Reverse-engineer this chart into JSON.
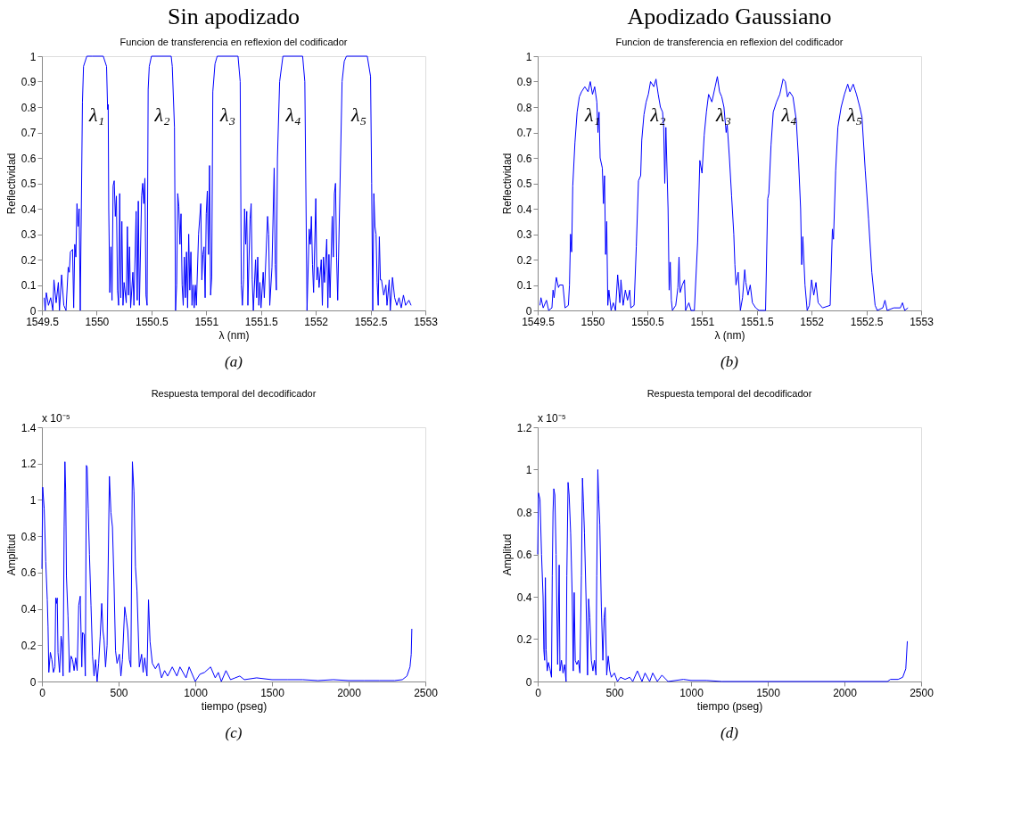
{
  "chart_data": [
    {
      "type": "line",
      "title": "Sin apodizado",
      "subtitle": "Funcion de transferencia en reflexion del codificador",
      "xlabel": "λ (nm)",
      "ylabel": "Reflectividad",
      "xlim": [
        1549.5,
        1553
      ],
      "xticks": [
        1549.5,
        1550,
        1550.5,
        1551,
        1551.5,
        1552,
        1552.5,
        1553
      ],
      "ylim": [
        0,
        1
      ],
      "yticks": [
        0,
        0.1,
        0.2,
        0.3,
        0.4,
        0.5,
        0.6,
        0.7,
        0.8,
        0.9,
        1
      ],
      "grid": false,
      "x": [
        1549.52,
        1549.53,
        1549.54,
        1549.56,
        1549.58,
        1549.6,
        1549.61,
        1549.63,
        1549.65,
        1549.66,
        1549.68,
        1549.7,
        1549.72,
        1549.74,
        1549.75,
        1549.76,
        1549.78,
        1549.79,
        1549.8,
        1549.81,
        1549.82,
        1549.83,
        1549.84,
        1549.85,
        1549.87,
        1549.88,
        1549.91,
        1549.96,
        1550.06,
        1550.09,
        1550.1,
        1550.105,
        1550.11,
        1550.12,
        1550.13,
        1550.14,
        1550.15,
        1550.16,
        1550.17,
        1550.18,
        1550.19,
        1550.2,
        1550.21,
        1550.22,
        1550.23,
        1550.24,
        1550.25,
        1550.27,
        1550.28,
        1550.29,
        1550.3,
        1550.31,
        1550.33,
        1550.34,
        1550.36,
        1550.37,
        1550.38,
        1550.39,
        1550.41,
        1550.42,
        1550.43,
        1550.44,
        1550.45,
        1550.46,
        1550.47,
        1550.48,
        1550.5,
        1550.68,
        1550.69,
        1550.71,
        1550.72,
        1550.73,
        1550.74,
        1550.75,
        1550.76,
        1550.77,
        1550.78,
        1550.79,
        1550.8,
        1550.81,
        1550.82,
        1550.83,
        1550.84,
        1550.85,
        1550.86,
        1550.87,
        1550.88,
        1550.89,
        1550.9,
        1550.91,
        1550.93,
        1550.95,
        1550.96,
        1550.97,
        1550.98,
        1550.99,
        1551.0,
        1551.01,
        1551.02,
        1551.03,
        1551.04,
        1551.05,
        1551.06,
        1551.08,
        1551.1,
        1551.29,
        1551.31,
        1551.32,
        1551.33,
        1551.34,
        1551.35,
        1551.36,
        1551.37,
        1551.38,
        1551.4,
        1551.41,
        1551.42,
        1551.43,
        1551.45,
        1551.46,
        1551.47,
        1551.48,
        1551.49,
        1551.5,
        1551.52,
        1551.53,
        1551.56,
        1551.57,
        1551.58,
        1551.6,
        1551.62,
        1551.63,
        1551.64,
        1551.65,
        1551.67,
        1551.7,
        1551.88,
        1551.9,
        1551.92,
        1551.94,
        1551.95,
        1551.96,
        1551.97,
        1551.98,
        1552.0,
        1552.01,
        1552.02,
        1552.03,
        1552.05,
        1552.06,
        1552.07,
        1552.08,
        1552.1,
        1552.11,
        1552.12,
        1552.13,
        1552.15,
        1552.16,
        1552.17,
        1552.18,
        1552.19,
        1552.2,
        1552.24,
        1552.26,
        1552.28,
        1552.47,
        1552.5,
        1552.51,
        1552.52,
        1552.53,
        1552.54,
        1552.55,
        1552.56,
        1552.57,
        1552.58,
        1552.59,
        1552.6,
        1552.62,
        1552.64,
        1552.65,
        1552.67,
        1552.68,
        1552.7,
        1552.72,
        1552.74,
        1552.76,
        1552.78,
        1552.8,
        1552.82,
        1552.85,
        1552.87
      ],
      "series": [
        {
          "color": "#0000ff",
          "values": [
            0.05,
            0.0,
            0.07,
            0.02,
            0.05,
            0.0,
            0.12,
            0.03,
            0.11,
            0.0,
            0.14,
            0.02,
            0.0,
            0.17,
            0.15,
            0.23,
            0.24,
            0.01,
            0.26,
            0.21,
            0.42,
            0.33,
            0.4,
            0.0,
            0.82,
            0.96,
            1.0,
            1.0,
            1.0,
            0.96,
            0.79,
            0.81,
            0.4,
            0.07,
            0.25,
            0.04,
            0.49,
            0.51,
            0.37,
            0.45,
            0.08,
            0.02,
            0.46,
            0.05,
            0.35,
            0.02,
            0.11,
            0.03,
            0.33,
            0.06,
            0.25,
            0.01,
            0.15,
            0.02,
            0.39,
            0.04,
            0.43,
            0.02,
            0.45,
            0.5,
            0.42,
            0.52,
            0.06,
            0.02,
            0.87,
            0.96,
            1.0,
            1.0,
            0.96,
            0.72,
            0.0,
            0.1,
            0.46,
            0.41,
            0.26,
            0.38,
            0.1,
            0.02,
            0.21,
            0.05,
            0.23,
            0.01,
            0.3,
            0.08,
            0.23,
            0.02,
            0.1,
            0.01,
            0.1,
            0.02,
            0.3,
            0.42,
            0.12,
            0.22,
            0.25,
            0.05,
            0.38,
            0.47,
            0.22,
            0.57,
            0.06,
            0.13,
            0.86,
            0.97,
            1.0,
            1.0,
            0.9,
            0.1,
            0.02,
            0.12,
            0.4,
            0.26,
            0.39,
            0.02,
            0.36,
            0.42,
            0.12,
            0.0,
            0.2,
            0.05,
            0.21,
            0.02,
            0.11,
            0.01,
            0.15,
            0.05,
            0.37,
            0.3,
            0.02,
            0.17,
            0.56,
            0.18,
            0.08,
            0.6,
            0.9,
            1.0,
            1.0,
            0.9,
            0.0,
            0.32,
            0.26,
            0.37,
            0.18,
            0.07,
            0.44,
            0.12,
            0.17,
            0.09,
            0.2,
            0.02,
            0.21,
            0.11,
            0.28,
            0.01,
            0.22,
            0.05,
            0.37,
            0.21,
            0.46,
            0.5,
            0.21,
            0.04,
            0.9,
            0.98,
            1.0,
            1.0,
            0.92,
            0.5,
            0.0,
            0.46,
            0.33,
            0.3,
            0.11,
            0.02,
            0.29,
            0.12,
            0.12,
            0.06,
            0.1,
            0.02,
            0.12,
            0.0,
            0.13,
            0.05,
            0.02,
            0.05,
            0.01,
            0.06,
            0.02,
            0.04,
            0.02
          ]
        }
      ],
      "annotations": [
        "λ₁",
        "λ₂",
        "λ₃",
        "λ₄",
        "λ₅",
        "(a)"
      ]
    },
    {
      "type": "line",
      "title": "Apodizado Gaussiano",
      "subtitle": "Funcion de transferencia en reflexion del codificador",
      "xlabel": "λ (nm)",
      "ylabel": "Reflectividad",
      "xlim": [
        1549.5,
        1553
      ],
      "xticks": [
        1549.5,
        1550,
        1550.5,
        1551,
        1551.5,
        1552,
        1552.5,
        1553
      ],
      "ylim": [
        0,
        1
      ],
      "yticks": [
        0,
        0.1,
        0.2,
        0.3,
        0.4,
        0.5,
        0.6,
        0.7,
        0.8,
        0.9,
        1
      ],
      "grid": false,
      "x": [
        1549.52,
        1549.53,
        1549.55,
        1549.58,
        1549.6,
        1549.63,
        1549.64,
        1549.65,
        1549.67,
        1549.69,
        1549.7,
        1549.73,
        1549.75,
        1549.78,
        1549.79,
        1549.8,
        1549.81,
        1549.82,
        1549.84,
        1549.86,
        1549.88,
        1549.9,
        1549.93,
        1549.96,
        1549.98,
        1550.0,
        1550.02,
        1550.04,
        1550.05,
        1550.06,
        1550.07,
        1550.09,
        1550.1,
        1550.11,
        1550.12,
        1550.13,
        1550.14,
        1550.15,
        1550.17,
        1550.19,
        1550.21,
        1550.23,
        1550.25,
        1550.26,
        1550.28,
        1550.3,
        1550.32,
        1550.34,
        1550.35,
        1550.38,
        1550.4,
        1550.42,
        1550.44,
        1550.45,
        1550.47,
        1550.49,
        1550.51,
        1550.53,
        1550.56,
        1550.58,
        1550.6,
        1550.62,
        1550.64,
        1550.65,
        1550.66,
        1550.67,
        1550.69,
        1550.7,
        1550.71,
        1550.72,
        1550.73,
        1550.76,
        1550.78,
        1550.79,
        1550.8,
        1550.82,
        1550.84,
        1550.85,
        1550.88,
        1550.9,
        1550.93,
        1550.96,
        1550.98,
        1551.0,
        1551.02,
        1551.04,
        1551.06,
        1551.09,
        1551.12,
        1551.14,
        1551.16,
        1551.18,
        1551.2,
        1551.22,
        1551.23,
        1551.25,
        1551.27,
        1551.29,
        1551.3,
        1551.31,
        1551.33,
        1551.35,
        1551.37,
        1551.39,
        1551.4,
        1551.42,
        1551.44,
        1551.46,
        1551.49,
        1551.52,
        1551.58,
        1551.6,
        1551.61,
        1551.63,
        1551.65,
        1551.68,
        1551.71,
        1551.74,
        1551.76,
        1551.78,
        1551.8,
        1551.83,
        1551.86,
        1551.88,
        1551.9,
        1551.91,
        1551.92,
        1551.94,
        1551.96,
        1551.98,
        1552.0,
        1552.02,
        1552.04,
        1552.06,
        1552.1,
        1552.17,
        1552.19,
        1552.2,
        1552.22,
        1552.24,
        1552.27,
        1552.3,
        1552.33,
        1552.35,
        1552.38,
        1552.41,
        1552.44,
        1552.46,
        1552.49,
        1552.52,
        1552.55,
        1552.58,
        1552.6,
        1552.65,
        1552.67,
        1552.69,
        1552.75,
        1552.81,
        1552.83,
        1552.85,
        1552.88
      ],
      "series": [
        {
          "color": "#0000ff",
          "values": [
            0.02,
            0.05,
            0.01,
            0.04,
            0.0,
            0.01,
            0.08,
            0.05,
            0.13,
            0.09,
            0.1,
            0.1,
            0.01,
            0.02,
            0.1,
            0.3,
            0.23,
            0.49,
            0.66,
            0.78,
            0.84,
            0.86,
            0.88,
            0.86,
            0.9,
            0.85,
            0.88,
            0.82,
            0.7,
            0.78,
            0.6,
            0.56,
            0.42,
            0.53,
            0.22,
            0.35,
            0.02,
            0.08,
            0.0,
            0.03,
            0.0,
            0.14,
            0.03,
            0.12,
            0.02,
            0.08,
            0.04,
            0.08,
            0.01,
            0.02,
            0.25,
            0.51,
            0.53,
            0.67,
            0.77,
            0.82,
            0.85,
            0.9,
            0.88,
            0.91,
            0.85,
            0.8,
            0.78,
            0.72,
            0.5,
            0.72,
            0.4,
            0.08,
            0.19,
            0.04,
            0.0,
            0.02,
            0.09,
            0.21,
            0.07,
            0.1,
            0.12,
            0.0,
            0.03,
            0.0,
            0.0,
            0.27,
            0.59,
            0.54,
            0.69,
            0.78,
            0.85,
            0.82,
            0.88,
            0.92,
            0.86,
            0.84,
            0.8,
            0.7,
            0.73,
            0.6,
            0.45,
            0.3,
            0.18,
            0.1,
            0.15,
            0.0,
            0.05,
            0.16,
            0.11,
            0.06,
            0.1,
            0.03,
            0.01,
            0.0,
            0.0,
            0.44,
            0.46,
            0.65,
            0.78,
            0.82,
            0.85,
            0.91,
            0.9,
            0.84,
            0.86,
            0.84,
            0.75,
            0.6,
            0.4,
            0.18,
            0.29,
            0.1,
            0.0,
            0.02,
            0.12,
            0.06,
            0.11,
            0.03,
            0.01,
            0.02,
            0.32,
            0.28,
            0.55,
            0.72,
            0.8,
            0.85,
            0.89,
            0.86,
            0.89,
            0.85,
            0.8,
            0.76,
            0.55,
            0.36,
            0.15,
            0.02,
            0.0,
            0.01,
            0.04,
            0.0,
            0.01,
            0.01,
            0.03,
            0.0,
            0.01
          ]
        }
      ],
      "annotations": [
        "λ₁",
        "λ₂",
        "λ₃",
        "λ₄",
        "λ₅",
        "(b)"
      ]
    },
    {
      "type": "line",
      "title": "Respuesta temporal del decodificador",
      "xlabel": "tiempo (pseg)",
      "ylabel": "Amplitud",
      "xlim": [
        0,
        2500
      ],
      "xticks": [
        0,
        500,
        1000,
        1500,
        2000,
        2500
      ],
      "ylim": [
        0,
        1.4
      ],
      "yticks": [
        0,
        0.2,
        0.4,
        0.6,
        0.8,
        1,
        1.2,
        1.4
      ],
      "grid": false,
      "x": [
        0,
        5,
        15,
        25,
        35,
        40,
        45,
        55,
        65,
        75,
        85,
        90,
        95,
        100,
        105,
        115,
        125,
        130,
        138,
        145,
        150,
        155,
        160,
        170,
        180,
        190,
        200,
        210,
        220,
        230,
        240,
        250,
        260,
        265,
        275,
        283,
        290,
        295,
        302,
        310,
        320,
        330,
        340,
        350,
        360,
        370,
        380,
        390,
        398,
        405,
        415,
        425,
        440,
        450,
        460,
        470,
        480,
        490,
        505,
        515,
        525,
        540,
        550,
        560,
        570,
        580,
        590,
        600,
        610,
        620,
        635,
        650,
        660,
        670,
        685,
        695,
        705,
        720,
        740,
        760,
        780,
        800,
        820,
        850,
        880,
        900,
        940,
        960,
        1000,
        1030,
        1060,
        1100,
        1130,
        1150,
        1170,
        1200,
        1230,
        1260,
        1290,
        1320,
        1400,
        1500,
        1600,
        1700,
        1800,
        1900,
        2000,
        2100,
        2200,
        2300,
        2350,
        2380,
        2400,
        2408,
        2412
      ],
      "series": [
        {
          "color": "#0000ff",
          "values": [
            0.62,
            1.07,
            0.95,
            0.66,
            0.45,
            0.3,
            0.05,
            0.16,
            0.12,
            0.05,
            0.08,
            0.46,
            0.43,
            0.46,
            0.16,
            0.05,
            0.25,
            0.22,
            0.03,
            0.85,
            1.21,
            1.05,
            0.58,
            0.36,
            0.05,
            0.14,
            0.12,
            0.06,
            0.13,
            0.06,
            0.42,
            0.47,
            0.08,
            0.27,
            0.26,
            0.03,
            1.19,
            1.18,
            0.95,
            0.7,
            0.42,
            0.14,
            0.03,
            0.12,
            0.0,
            0.1,
            0.25,
            0.43,
            0.28,
            0.23,
            0.08,
            0.2,
            1.13,
            0.93,
            0.85,
            0.55,
            0.17,
            0.1,
            0.15,
            0.03,
            0.12,
            0.41,
            0.35,
            0.28,
            0.12,
            0.08,
            1.21,
            1.05,
            0.63,
            0.5,
            0.08,
            0.15,
            0.05,
            0.13,
            0.03,
            0.45,
            0.22,
            0.1,
            0.07,
            0.1,
            0.02,
            0.06,
            0.03,
            0.08,
            0.03,
            0.08,
            0.02,
            0.08,
            0.0,
            0.04,
            0.05,
            0.08,
            0.02,
            0.05,
            0.0,
            0.06,
            0.01,
            0.02,
            0.03,
            0.01,
            0.02,
            0.01,
            0.01,
            0.01,
            0.005,
            0.01,
            0.005,
            0.005,
            0.005,
            0.005,
            0.01,
            0.03,
            0.08,
            0.15,
            0.29
          ]
        }
      ],
      "annotations": [
        "x 10⁻⁵",
        "(c)"
      ]
    },
    {
      "type": "line",
      "title": "Respuesta temporal del decodificador",
      "xlabel": "tiempo (pseg)",
      "ylabel": "Amplitud",
      "xlim": [
        0,
        2500
      ],
      "xticks": [
        0,
        500,
        1000,
        1500,
        2000,
        2500
      ],
      "ylim": [
        0,
        1.2
      ],
      "yticks": [
        0,
        0.2,
        0.4,
        0.6,
        0.8,
        1,
        1.2
      ],
      "grid": false,
      "x": [
        0,
        5,
        15,
        25,
        35,
        40,
        45,
        50,
        55,
        62,
        70,
        80,
        90,
        95,
        100,
        105,
        112,
        120,
        130,
        140,
        145,
        155,
        165,
        175,
        185,
        190,
        198,
        205,
        215,
        225,
        232,
        238,
        245,
        255,
        265,
        275,
        285,
        292,
        298,
        305,
        315,
        325,
        332,
        340,
        350,
        360,
        370,
        380,
        385,
        392,
        398,
        405,
        415,
        425,
        433,
        440,
        450,
        460,
        470,
        480,
        500,
        520,
        540,
        570,
        600,
        620,
        650,
        680,
        700,
        730,
        750,
        780,
        810,
        850,
        950,
        1000,
        1100,
        1200,
        1500,
        2000,
        2280,
        2300,
        2350,
        2380,
        2400,
        2410
      ],
      "series": [
        {
          "color": "#0000ff",
          "values": [
            0.6,
            0.89,
            0.86,
            0.6,
            0.4,
            0.15,
            0.1,
            0.49,
            0.15,
            0.05,
            0.09,
            0.06,
            0.02,
            0.5,
            0.8,
            0.91,
            0.88,
            0.6,
            0.08,
            0.55,
            0.05,
            0.1,
            0.04,
            0.08,
            0.0,
            0.5,
            0.94,
            0.88,
            0.7,
            0.4,
            0.05,
            0.42,
            0.1,
            0.08,
            0.1,
            0.04,
            0.5,
            0.96,
            0.85,
            0.7,
            0.4,
            0.03,
            0.39,
            0.3,
            0.1,
            0.05,
            0.1,
            0.03,
            0.5,
            1.0,
            0.86,
            0.74,
            0.35,
            0.1,
            0.3,
            0.35,
            0.03,
            0.12,
            0.05,
            0.02,
            0.04,
            0.0,
            0.02,
            0.01,
            0.02,
            0.0,
            0.05,
            0.0,
            0.04,
            0.0,
            0.04,
            0.0,
            0.03,
            0.0,
            0.01,
            0.005,
            0.005,
            0.0,
            0.0,
            0.0,
            0.0,
            0.01,
            0.01,
            0.02,
            0.06,
            0.19
          ]
        }
      ],
      "annotations": [
        "x 10⁻⁵",
        "(d)"
      ]
    }
  ]
}
